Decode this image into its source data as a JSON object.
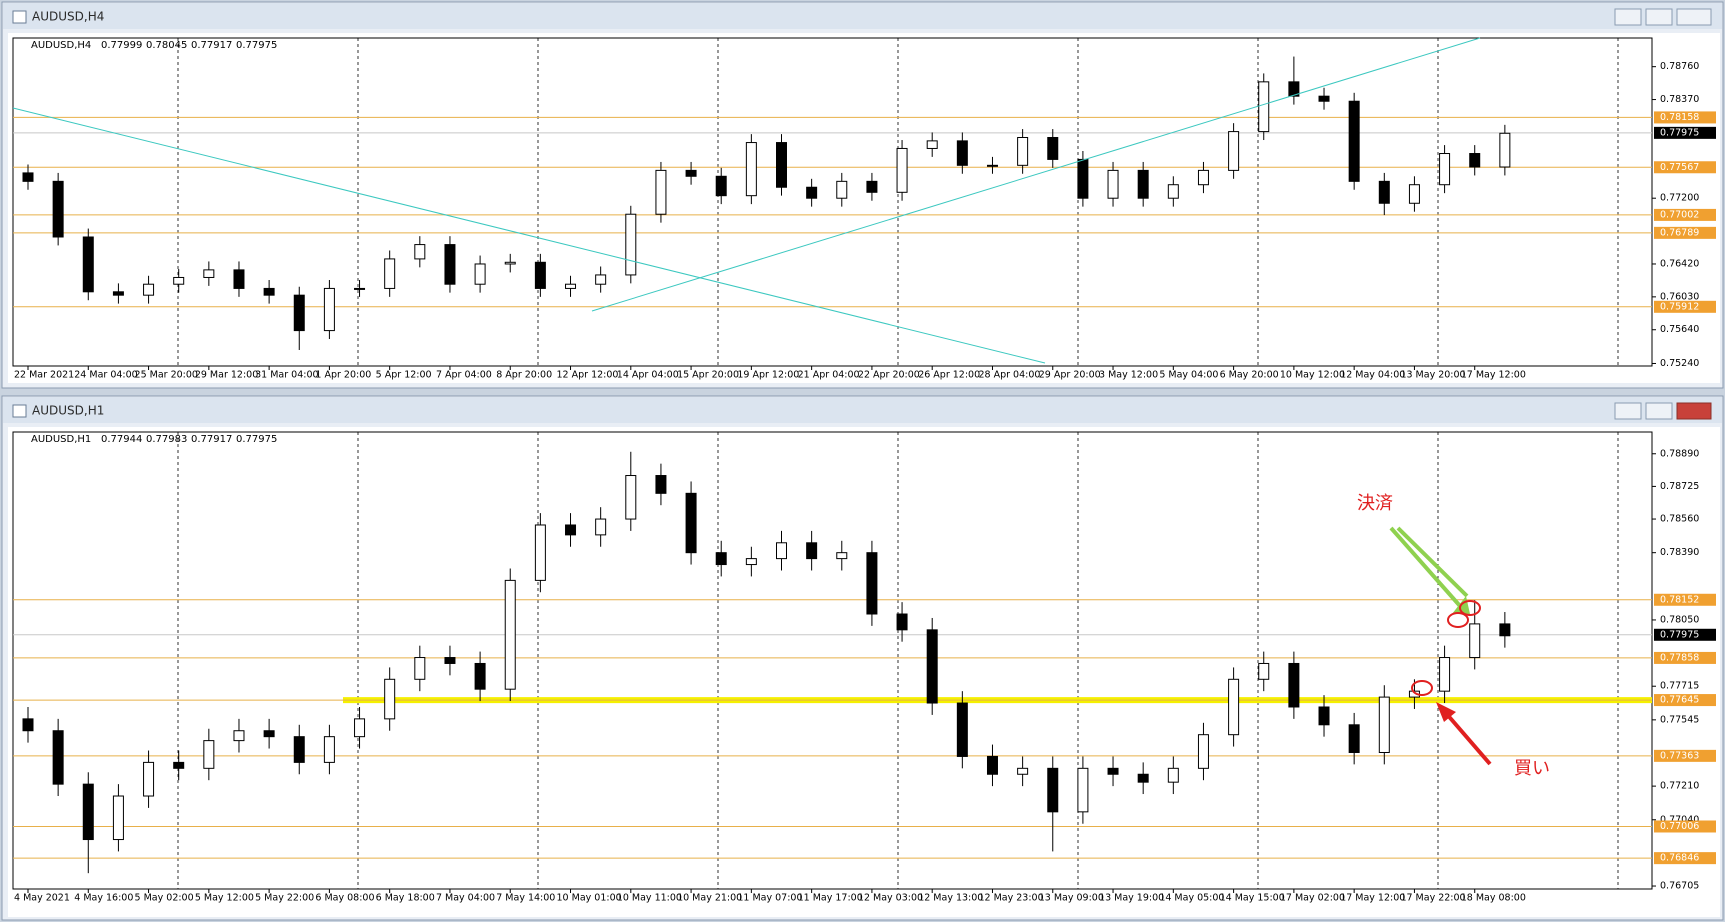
{
  "chart_data": [
    {
      "type": "candlestick",
      "window_title": "AUDUSD,H4",
      "symbol": "AUDUSD,H4",
      "ohlc": [
        0.77999,
        0.78045,
        0.77917,
        0.77975
      ],
      "categories": [
        "22 Mar 2021",
        null,
        "24 Mar 04:00",
        null,
        "25 Mar 20:00",
        null,
        "29 Mar 12:00",
        null,
        "31 Mar 04:00",
        null,
        "1 Apr 20:00",
        null,
        "5 Apr 12:00",
        null,
        "7 Apr 04:00",
        null,
        "8 Apr 20:00",
        null,
        "12 Apr 12:00",
        null,
        "14 Apr 04:00",
        null,
        "15 Apr 20:00",
        null,
        "19 Apr 12:00",
        null,
        "21 Apr 04:00",
        null,
        "22 Apr 20:00",
        null,
        "26 Apr 12:00",
        null,
        "28 Apr 04:00",
        null,
        "29 Apr 20:00",
        null,
        "3 May 12:00",
        null,
        "5 May 04:00",
        null,
        "6 May 20:00",
        null,
        "10 May 12:00",
        null,
        "12 May 04:00",
        null,
        "13 May 20:00",
        null,
        "17 May 12:00",
        null
      ],
      "open": [
        0.775,
        0.774,
        0.7674,
        0.7609,
        0.7605,
        0.7618,
        0.7626,
        0.7635,
        0.7613,
        0.7605,
        0.7563,
        0.7613,
        0.7613,
        0.7648,
        0.7665,
        0.7618,
        0.7642,
        0.7644,
        0.7613,
        0.7618,
        0.7629,
        0.7701,
        0.7753,
        0.7746,
        0.7723,
        0.7786,
        0.7733,
        0.772,
        0.774,
        0.7727,
        0.7779,
        0.7788,
        0.7759,
        0.7759,
        0.7792,
        0.7766,
        0.772,
        0.7753,
        0.772,
        0.7736,
        0.7753,
        0.7799,
        0.7858,
        0.7841,
        0.7835,
        0.774,
        0.7714,
        0.7736,
        0.7773,
        0.7757
      ],
      "high": [
        0.776,
        0.775,
        0.7684,
        0.7619,
        0.7628,
        0.7636,
        0.7645,
        0.7645,
        0.7623,
        0.7615,
        0.7623,
        0.7623,
        0.7658,
        0.7675,
        0.7675,
        0.7652,
        0.7654,
        0.7654,
        0.7628,
        0.7639,
        0.7711,
        0.7763,
        0.7763,
        0.7756,
        0.7796,
        0.7796,
        0.7743,
        0.775,
        0.775,
        0.7789,
        0.7798,
        0.7798,
        0.7769,
        0.7802,
        0.7802,
        0.7776,
        0.7763,
        0.7763,
        0.7746,
        0.7763,
        0.7809,
        0.7868,
        0.7888,
        0.7851,
        0.7845,
        0.775,
        0.7746,
        0.7783,
        0.7783,
        0.7807
      ],
      "low": [
        0.773,
        0.7664,
        0.7599,
        0.7595,
        0.7595,
        0.7608,
        0.7616,
        0.7603,
        0.7595,
        0.754,
        0.7553,
        0.7603,
        0.7603,
        0.7638,
        0.7608,
        0.7608,
        0.7632,
        0.7603,
        0.7603,
        0.7608,
        0.7619,
        0.7691,
        0.7736,
        0.7713,
        0.7713,
        0.7723,
        0.771,
        0.771,
        0.7717,
        0.7717,
        0.7769,
        0.7749,
        0.7749,
        0.7749,
        0.7756,
        0.771,
        0.771,
        0.771,
        0.771,
        0.7726,
        0.7743,
        0.7789,
        0.7831,
        0.7825,
        0.773,
        0.77,
        0.7704,
        0.7726,
        0.7747,
        0.7747
      ],
      "close": [
        0.774,
        0.7674,
        0.7609,
        0.7605,
        0.7618,
        0.7626,
        0.7635,
        0.7613,
        0.7605,
        0.7563,
        0.7613,
        0.7613,
        0.7648,
        0.7665,
        0.7618,
        0.7642,
        0.7644,
        0.7613,
        0.7618,
        0.7629,
        0.7701,
        0.7753,
        0.7746,
        0.7723,
        0.7786,
        0.7733,
        0.772,
        0.774,
        0.7727,
        0.7779,
        0.7788,
        0.7759,
        0.7759,
        0.7792,
        0.7766,
        0.772,
        0.7753,
        0.772,
        0.7736,
        0.7753,
        0.7799,
        0.7858,
        0.7841,
        0.7835,
        0.774,
        0.7714,
        0.7736,
        0.7773,
        0.7757,
        0.7797
      ],
      "ylim": [
        0.7521,
        0.791
      ],
      "yticks": [
        {
          "value": 0.7876,
          "label": "0.78760"
        },
        {
          "value": 0.7837,
          "label": "0.78370"
        },
        {
          "value": 0.772,
          "label": "0.77200"
        },
        {
          "value": 0.7642,
          "label": "0.76420"
        },
        {
          "value": 0.7603,
          "label": "0.76030"
        },
        {
          "value": 0.7564,
          "label": "0.75640"
        },
        {
          "value": 0.7524,
          "label": "0.75240"
        }
      ],
      "levels": [
        {
          "value": 0.78158,
          "color": "#e8b04a",
          "label_color": "#f0a030"
        },
        {
          "value": 0.77975,
          "color": "#c8c8c8",
          "label_color": "#000000"
        },
        {
          "value": 0.77567,
          "color": "#e8b04a",
          "label_color": "#f0a030"
        },
        {
          "value": 0.77002,
          "color": "#e8b04a",
          "label_color": "#f0a030"
        },
        {
          "value": 0.76789,
          "color": "#e8b04a",
          "label_color": "#f0a030"
        },
        {
          "value": 0.75912,
          "color": "#e8b04a",
          "label_color": "#f0a030"
        }
      ]
    },
    {
      "type": "candlestick",
      "window_title": "AUDUSD,H1",
      "symbol": "AUDUSD,H1",
      "ohlc": [
        0.77944,
        0.77983,
        0.77917,
        0.77975
      ],
      "annotations": [
        "決済",
        "買い"
      ],
      "categories": [
        "4 May 2021",
        null,
        "4 May 16:00",
        null,
        "5 May 02:00",
        null,
        "5 May 12:00",
        null,
        "5 May 22:00",
        null,
        "6 May 08:00",
        null,
        "6 May 18:00",
        null,
        "7 May 04:00",
        null,
        "7 May 14:00",
        null,
        "10 May 01:00",
        null,
        "10 May 11:00",
        null,
        "10 May 21:00",
        null,
        "11 May 07:00",
        null,
        "11 May 17:00",
        null,
        "12 May 03:00",
        null,
        "12 May 13:00",
        null,
        "12 May 23:00",
        null,
        "13 May 09:00",
        null,
        "13 May 19:00",
        null,
        "14 May 05:00",
        null,
        "14 May 15:00",
        null,
        "17 May 02:00",
        null,
        "17 May 12:00",
        null,
        "17 May 22:00",
        null,
        "18 May 08:00",
        null
      ],
      "open": [
        0.7755,
        0.7749,
        0.7722,
        0.7694,
        0.7716,
        0.7733,
        0.773,
        0.7744,
        0.7749,
        0.7746,
        0.7733,
        0.7746,
        0.7755,
        0.7775,
        0.7786,
        0.7783,
        0.777,
        0.7825,
        0.7853,
        0.7848,
        0.7856,
        0.7878,
        0.7869,
        0.7839,
        0.7833,
        0.7836,
        0.7844,
        0.7836,
        0.7839,
        0.7808,
        0.78,
        0.7763,
        0.7736,
        0.7727,
        0.773,
        0.7708,
        0.773,
        0.7727,
        0.7723,
        0.773,
        0.7747,
        0.7775,
        0.7783,
        0.7761,
        0.7752,
        0.7738,
        0.7766,
        0.7769,
        0.7786,
        0.7803
      ],
      "high": [
        0.7761,
        0.7755,
        0.7728,
        0.7722,
        0.7739,
        0.7739,
        0.775,
        0.7755,
        0.7755,
        0.7752,
        0.7752,
        0.7761,
        0.7781,
        0.7792,
        0.7792,
        0.7789,
        0.7831,
        0.7859,
        0.7859,
        0.7862,
        0.789,
        0.7884,
        0.7875,
        0.7845,
        0.7842,
        0.785,
        0.785,
        0.7845,
        0.7845,
        0.7814,
        0.7806,
        0.7769,
        0.7742,
        0.7736,
        0.7736,
        0.7736,
        0.7736,
        0.7733,
        0.7736,
        0.7753,
        0.7781,
        0.7789,
        0.7789,
        0.7767,
        0.7758,
        0.7772,
        0.7775,
        0.7792,
        0.7815,
        0.7809
      ],
      "low": [
        0.7743,
        0.7716,
        0.7677,
        0.7688,
        0.771,
        0.7724,
        0.7724,
        0.7738,
        0.774,
        0.7727,
        0.7727,
        0.774,
        0.7749,
        0.7769,
        0.7777,
        0.7764,
        0.7764,
        0.7819,
        0.7842,
        0.7842,
        0.785,
        0.7863,
        0.7833,
        0.7827,
        0.7827,
        0.783,
        0.783,
        0.783,
        0.7802,
        0.7794,
        0.7757,
        0.773,
        0.7721,
        0.7721,
        0.7688,
        0.7702,
        0.7721,
        0.7717,
        0.7717,
        0.7724,
        0.7741,
        0.7769,
        0.7755,
        0.7746,
        0.7732,
        0.7732,
        0.776,
        0.7763,
        0.778,
        0.7791
      ],
      "close": [
        0.7749,
        0.7722,
        0.7694,
        0.7716,
        0.7733,
        0.773,
        0.7744,
        0.7749,
        0.7746,
        0.7733,
        0.7746,
        0.7755,
        0.7775,
        0.7786,
        0.7783,
        0.777,
        0.7825,
        0.7853,
        0.7848,
        0.7856,
        0.7878,
        0.7869,
        0.7839,
        0.7833,
        0.7836,
        0.7844,
        0.7836,
        0.7839,
        0.7808,
        0.78,
        0.7763,
        0.7736,
        0.7727,
        0.773,
        0.7708,
        0.773,
        0.7727,
        0.7723,
        0.773,
        0.7747,
        0.7775,
        0.7783,
        0.7761,
        0.7752,
        0.7738,
        0.7766,
        0.7769,
        0.7786,
        0.7803,
        0.7797
      ],
      "ylim": [
        0.7669,
        0.79
      ],
      "yticks": [
        {
          "value": 0.7889,
          "label": "0.78890"
        },
        {
          "value": 0.78725,
          "label": "0.78725"
        },
        {
          "value": 0.7856,
          "label": "0.78560"
        },
        {
          "value": 0.7839,
          "label": "0.78390"
        },
        {
          "value": 0.7805,
          "label": "0.78050"
        },
        {
          "value": 0.77715,
          "label": "0.77715"
        },
        {
          "value": 0.77545,
          "label": "0.77545"
        },
        {
          "value": 0.7721,
          "label": "0.77210"
        },
        {
          "value": 0.7704,
          "label": "0.77040"
        },
        {
          "value": 0.76705,
          "label": "0.76705"
        }
      ],
      "levels": [
        {
          "value": 0.78152,
          "color": "#e8b04a",
          "label_color": "#f0a030"
        },
        {
          "value": 0.77975,
          "color": "#c8c8c8",
          "label_color": "#000000"
        },
        {
          "value": 0.77858,
          "color": "#e8b04a",
          "label_color": "#f0a030"
        },
        {
          "value": 0.77645,
          "color": "#f5f000",
          "label_color": "#f0a030",
          "style": "highlight"
        },
        {
          "value": 0.77363,
          "color": "#e8b04a",
          "label_color": "#f0a030"
        },
        {
          "value": 0.77006,
          "color": "#e8b04a",
          "label_color": "#f0a030"
        },
        {
          "value": 0.76846,
          "color": "#e8b04a",
          "label_color": "#f0a030"
        }
      ]
    }
  ]
}
